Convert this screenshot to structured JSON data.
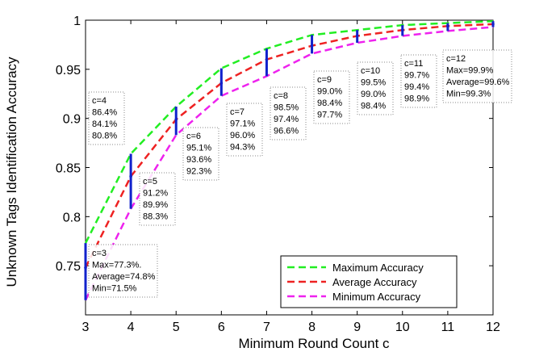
{
  "chart_data": {
    "type": "line",
    "xlabel": "Minimum Round Count c",
    "ylabel": "Unknown Tags Identification Accuracy",
    "xlim": [
      3,
      12
    ],
    "ylim": [
      0.7,
      1.0
    ],
    "x_ticks": [
      3,
      4,
      5,
      6,
      7,
      8,
      9,
      10,
      11,
      12
    ],
    "y_ticks": [
      0.75,
      0.8,
      0.85,
      0.9,
      0.95,
      1
    ],
    "x_tick_labels": [
      "3",
      "4",
      "5",
      "6",
      "7",
      "8",
      "9",
      "10",
      "11",
      "12"
    ],
    "y_tick_labels": [
      "0.75",
      "0.8",
      "0.85",
      "0.9",
      "0.95",
      "1"
    ],
    "x": [
      3,
      4,
      5,
      6,
      7,
      8,
      9,
      10,
      11,
      12
    ],
    "series": [
      {
        "name": "Maximum Accuracy",
        "color": "#22ee22",
        "dash": "dashed",
        "values": [
          0.773,
          0.864,
          0.912,
          0.951,
          0.971,
          0.985,
          0.99,
          0.995,
          0.997,
          0.999
        ]
      },
      {
        "name": "Average Accuracy",
        "color": "#ee2222",
        "dash": "dashed",
        "values": [
          0.748,
          0.841,
          0.899,
          0.936,
          0.96,
          0.974,
          0.984,
          0.99,
          0.994,
          0.996
        ]
      },
      {
        "name": "Minimum Accuracy",
        "color": "#ee22ee",
        "dash": "dashed",
        "values": [
          0.715,
          0.808,
          0.883,
          0.923,
          0.943,
          0.966,
          0.977,
          0.984,
          0.989,
          0.993
        ]
      }
    ],
    "error_bars_color": "#1122cc",
    "legend_placement": "bottom-right",
    "grid": false,
    "annotations": [
      {
        "lines": [
          "c=3",
          "Max=77.3%.",
          "Average=74.8%",
          "Min=71.5%"
        ]
      },
      {
        "lines": [
          "c=4",
          "86.4%",
          "84.1%",
          "80.8%"
        ]
      },
      {
        "lines": [
          "c=5",
          "91.2%",
          "89.9%",
          "88.3%"
        ]
      },
      {
        "lines": [
          "c=6",
          "95.1%",
          "93.6%",
          "92.3%"
        ]
      },
      {
        "lines": [
          "c=7",
          "97.1%",
          "96.0%",
          "94.3%"
        ]
      },
      {
        "lines": [
          "c=8",
          "98.5%",
          "97.4%",
          "96.6%"
        ]
      },
      {
        "lines": [
          "c=9",
          "99.0%",
          "98.4%",
          "97.7%"
        ]
      },
      {
        "lines": [
          "c=10",
          "99.5%",
          "99.0%",
          "98.4%"
        ]
      },
      {
        "lines": [
          "c=11",
          "99.7%",
          "99.4%",
          "98.9%"
        ]
      },
      {
        "lines": [
          "c=12",
          "Max=99.9%",
          "Average=99.6%",
          "Min=99.3%"
        ]
      }
    ]
  }
}
